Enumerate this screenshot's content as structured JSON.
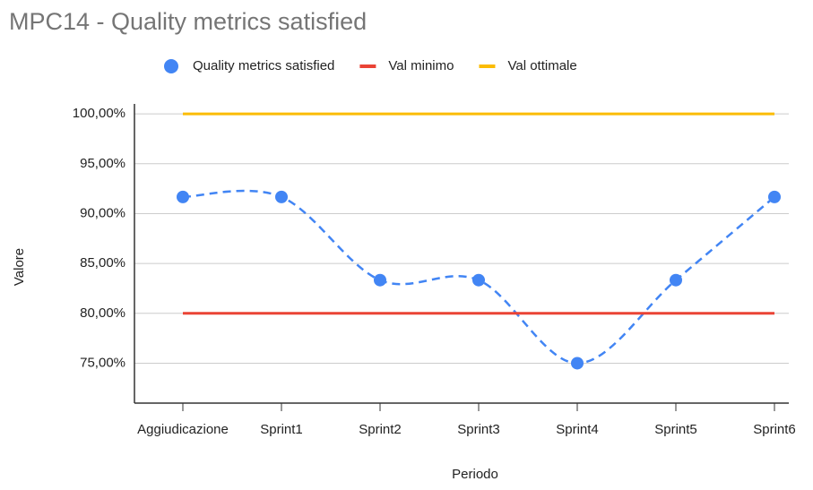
{
  "chart_data": {
    "type": "line",
    "title": "MPC14 - Quality metrics satisfied",
    "x_label": "Periodo",
    "y_label": "Valore",
    "categories": [
      "Aggiudicazione",
      "Sprint1",
      "Sprint2",
      "Sprint3",
      "Sprint4",
      "Sprint5",
      "Sprint6"
    ],
    "series": [
      {
        "name": "Quality metrics satisfied",
        "color": "#4285f4",
        "values": [
          91.67,
          91.67,
          83.33,
          83.33,
          75,
          83.33,
          91.67
        ],
        "marker": true,
        "dashed": true,
        "smooth": true
      },
      {
        "name": "Val minimo",
        "color": "#ea4335",
        "values": [
          80,
          80,
          80,
          80,
          80,
          80,
          80
        ]
      },
      {
        "name": "Val ottimale",
        "color": "#fbbc04",
        "values": [
          100,
          100,
          100,
          100,
          100,
          100,
          100
        ]
      }
    ],
    "ylim": [
      71,
      101
    ],
    "yticks": [
      {
        "value": 75,
        "label": "75,00%"
      },
      {
        "value": 80,
        "label": "80,00%"
      },
      {
        "value": 85,
        "label": "85,00%"
      },
      {
        "value": 90,
        "label": "90,00%"
      },
      {
        "value": 95,
        "label": "95,00%"
      },
      {
        "value": 100,
        "label": "100,00%"
      }
    ],
    "grid": true,
    "legend": "top"
  }
}
